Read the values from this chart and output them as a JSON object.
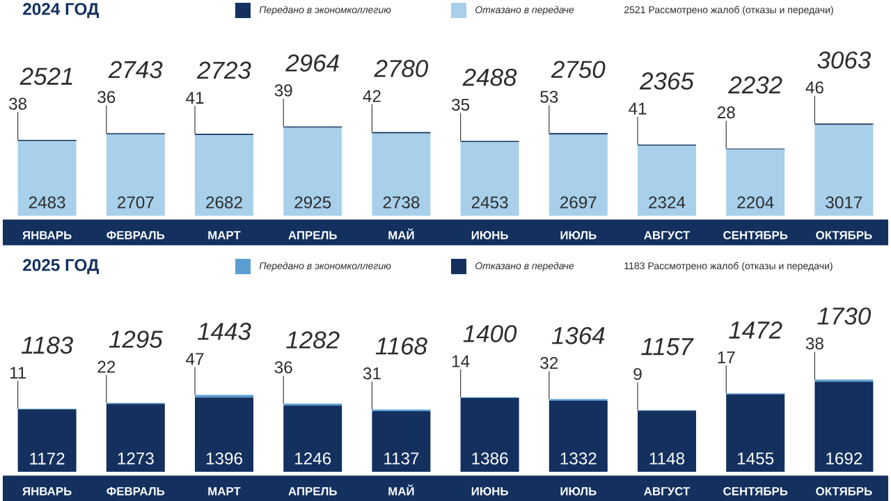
{
  "chart_data": [
    {
      "type": "bar",
      "title": "2024 ГОД",
      "stacked": true,
      "data_labels": true,
      "legend": "top",
      "categories": [
        "ЯНВАРЬ",
        "ФЕВРАЛЬ",
        "МАРТ",
        "АПРЕЛЬ",
        "МАЙ",
        "ИЮНЬ",
        "ИЮЛЬ",
        "АВГУСТ",
        "СЕНТЯБРЬ",
        "ОКТЯБРЬ"
      ],
      "series": [
        {
          "name": "Отказано в передаче",
          "color": "#a8d0ea",
          "values": [
            2483,
            2707,
            2682,
            2925,
            2738,
            2453,
            2697,
            2324,
            2204,
            3017
          ]
        },
        {
          "name": "Передано в экономколлегию",
          "color": "#13305f",
          "values": [
            38,
            36,
            41,
            39,
            42,
            35,
            53,
            41,
            28,
            46
          ]
        }
      ],
      "totals": [
        "2521",
        "2743",
        "2723",
        "2964",
        "2780",
        "2488",
        "2750",
        "2365",
        "2232",
        "3063"
      ],
      "annotations": [
        "2521 Рассмотрено жалоб (отказы и передачи)"
      ]
    },
    {
      "type": "bar",
      "title": "2025 ГОД",
      "stacked": true,
      "data_labels": true,
      "legend": "top",
      "categories": [
        "ЯНВАРЬ",
        "ФЕВРАЛЬ",
        "МАРТ",
        "АПРЕЛЬ",
        "МАЙ",
        "ИЮНЬ",
        "ИЮЛЬ",
        "АВГУСТ",
        "СЕНТЯБРЬ",
        "ОКТЯБРЬ"
      ],
      "series": [
        {
          "name": "Отказано в передаче",
          "color": "#13305f",
          "values": [
            1172,
            1273,
            1396,
            1246,
            1137,
            1386,
            1332,
            1148,
            1455,
            1692
          ]
        },
        {
          "name": "Передано в экономколлегию",
          "color": "#5b9fd2",
          "values": [
            11,
            22,
            47,
            36,
            31,
            14,
            32,
            9,
            17,
            38
          ]
        }
      ],
      "totals": [
        "1183",
        "1295",
        "1443",
        "1282",
        "1168",
        "1400",
        "1364",
        "1157",
        "1472",
        "1730"
      ],
      "annotations": [
        "1183 Рассмотрено жалоб (отказы и передачи)"
      ]
    }
  ]
}
